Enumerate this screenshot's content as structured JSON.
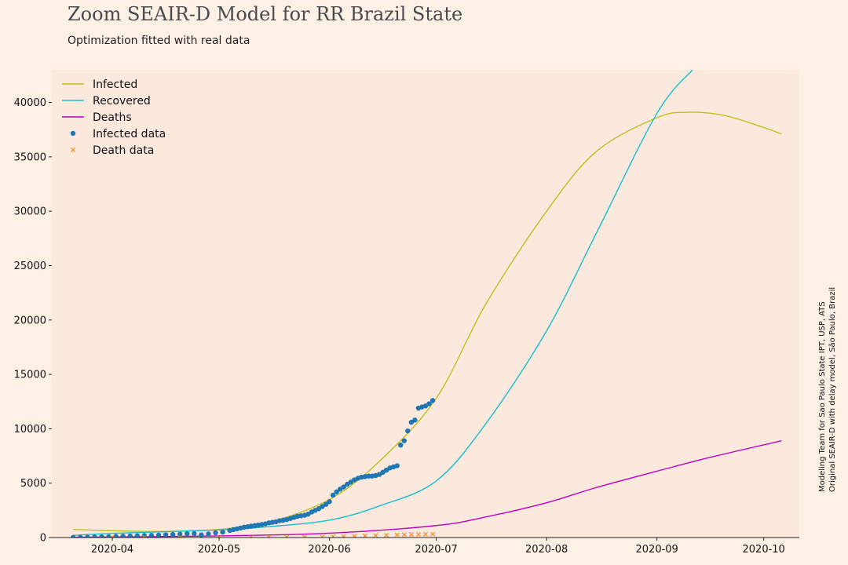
{
  "title": "Zoom SEAIR-D Model for RR Brazil State",
  "subtitle": "Optimization fitted with real data",
  "credits": [
    "Modeling Team for Sao Paulo State IPT, USP, ATS",
    "Original SEAIR-D with delay model, São Paulo, Brazil"
  ],
  "colors": {
    "background": "#fdf1e6",
    "plot_background": "#fbe9dd",
    "infected": "#c4bc1e",
    "recovered": "#17becf",
    "deaths": "#c000c0",
    "infected_data": "#1f77b4",
    "death_data": "#ff7f0e"
  },
  "chart_data": {
    "type": "line",
    "title": "Zoom SEAIR-D Model for RR Brazil State",
    "subtitle": "Optimization fitted with real data",
    "xlabel": "",
    "ylabel": "",
    "x_type": "date",
    "xlim": [
      "2020-03-15",
      "2020-10-11"
    ],
    "ylim": [
      0,
      43000
    ],
    "x_ticks": [
      "2020-04",
      "2020-05",
      "2020-06",
      "2020-07",
      "2020-08",
      "2020-09",
      "2020-10"
    ],
    "x_tick_dates": [
      "2020-04-01",
      "2020-05-01",
      "2020-06-01",
      "2020-07-01",
      "2020-08-01",
      "2020-09-01",
      "2020-10-01"
    ],
    "y_ticks": [
      0,
      5000,
      10000,
      15000,
      20000,
      25000,
      30000,
      35000,
      40000
    ],
    "grid": false,
    "legend_position": "top-left",
    "legend": [
      {
        "label": "Infected",
        "kind": "line",
        "color": "#c4bc1e"
      },
      {
        "label": "Recovered",
        "kind": "line",
        "color": "#17becf"
      },
      {
        "label": "Deaths",
        "kind": "line",
        "color": "#c000c0"
      },
      {
        "label": "Infected data",
        "kind": "dot",
        "color": "#1f77b4"
      },
      {
        "label": "Death data",
        "kind": "cross",
        "color": "#ff7f0e"
      }
    ],
    "series": [
      {
        "name": "Infected",
        "kind": "line",
        "color": "#c4bc1e",
        "x": [
          "2020-03-21",
          "2020-04-01",
          "2020-04-15",
          "2020-05-01",
          "2020-05-15",
          "2020-06-01",
          "2020-06-15",
          "2020-07-01",
          "2020-07-15",
          "2020-08-01",
          "2020-08-15",
          "2020-09-01",
          "2020-09-10",
          "2020-09-20",
          "2020-10-01",
          "2020-10-06"
        ],
        "y": [
          750,
          620,
          560,
          750,
          1400,
          3500,
          7000,
          12800,
          21500,
          30000,
          35500,
          38600,
          39100,
          38800,
          37700,
          37100
        ]
      },
      {
        "name": "Recovered",
        "kind": "line",
        "color": "#17becf",
        "x": [
          "2020-03-21",
          "2020-04-01",
          "2020-05-01",
          "2020-05-15",
          "2020-06-01",
          "2020-06-15",
          "2020-07-01",
          "2020-07-15",
          "2020-08-01",
          "2020-08-15",
          "2020-09-01",
          "2020-09-11"
        ],
        "y": [
          200,
          380,
          700,
          1000,
          1600,
          2900,
          5200,
          10500,
          19000,
          28000,
          39000,
          43000
        ]
      },
      {
        "name": "Deaths",
        "kind": "line",
        "color": "#c000c0",
        "x": [
          "2020-03-21",
          "2020-05-01",
          "2020-06-01",
          "2020-07-01",
          "2020-07-15",
          "2020-08-01",
          "2020-08-15",
          "2020-09-01",
          "2020-09-15",
          "2020-10-06"
        ],
        "y": [
          20,
          150,
          400,
          1100,
          1900,
          3200,
          4600,
          6100,
          7300,
          8900
        ]
      },
      {
        "name": "Infected data",
        "kind": "scatter",
        "marker": "dot",
        "color": "#1f77b4",
        "x": [
          "2020-03-21",
          "2020-03-23",
          "2020-03-25",
          "2020-03-27",
          "2020-03-29",
          "2020-03-31",
          "2020-04-02",
          "2020-04-04",
          "2020-04-06",
          "2020-04-08",
          "2020-04-10",
          "2020-04-12",
          "2020-04-14",
          "2020-04-16",
          "2020-04-18",
          "2020-04-20",
          "2020-04-22",
          "2020-04-24",
          "2020-04-26",
          "2020-04-28",
          "2020-04-30",
          "2020-05-02",
          "2020-05-04",
          "2020-05-05",
          "2020-05-06",
          "2020-05-07",
          "2020-05-08",
          "2020-05-09",
          "2020-05-10",
          "2020-05-11",
          "2020-05-12",
          "2020-05-13",
          "2020-05-14",
          "2020-05-15",
          "2020-05-16",
          "2020-05-17",
          "2020-05-18",
          "2020-05-19",
          "2020-05-20",
          "2020-05-21",
          "2020-05-22",
          "2020-05-23",
          "2020-05-24",
          "2020-05-25",
          "2020-05-26",
          "2020-05-27",
          "2020-05-28",
          "2020-05-29",
          "2020-05-30",
          "2020-05-31",
          "2020-06-01",
          "2020-06-02",
          "2020-06-03",
          "2020-06-04",
          "2020-06-05",
          "2020-06-06",
          "2020-06-07",
          "2020-06-08",
          "2020-06-09",
          "2020-06-10",
          "2020-06-11",
          "2020-06-12",
          "2020-06-13",
          "2020-06-14",
          "2020-06-15",
          "2020-06-16",
          "2020-06-17",
          "2020-06-18",
          "2020-06-19",
          "2020-06-20",
          "2020-06-21",
          "2020-06-22",
          "2020-06-23",
          "2020-06-24",
          "2020-06-25",
          "2020-06-26",
          "2020-06-27",
          "2020-06-28",
          "2020-06-29",
          "2020-06-30"
        ],
        "y": [
          10,
          20,
          30,
          50,
          60,
          80,
          100,
          120,
          140,
          160,
          180,
          200,
          220,
          250,
          280,
          310,
          350,
          370,
          250,
          330,
          430,
          500,
          650,
          730,
          800,
          870,
          950,
          1000,
          1050,
          1100,
          1150,
          1200,
          1260,
          1350,
          1400,
          1450,
          1550,
          1600,
          1650,
          1750,
          1850,
          1950,
          2000,
          2050,
          2150,
          2350,
          2500,
          2650,
          2850,
          3050,
          3300,
          3900,
          4200,
          4450,
          4650,
          4900,
          5100,
          5300,
          5450,
          5550,
          5600,
          5650,
          5650,
          5700,
          5800,
          6000,
          6200,
          6400,
          6500,
          6600,
          8500,
          8900,
          9800,
          10600,
          10800,
          11900,
          12000,
          12100,
          12300,
          12600
        ]
      },
      {
        "name": "Death data",
        "kind": "scatter",
        "marker": "cross",
        "color": "#ff7f0e",
        "x": [
          "2020-04-01",
          "2020-04-10",
          "2020-04-20",
          "2020-05-01",
          "2020-05-10",
          "2020-05-15",
          "2020-05-20",
          "2020-05-25",
          "2020-05-30",
          "2020-06-02",
          "2020-06-05",
          "2020-06-08",
          "2020-06-11",
          "2020-06-14",
          "2020-06-17",
          "2020-06-20",
          "2020-06-22",
          "2020-06-24",
          "2020-06-26",
          "2020-06-28",
          "2020-06-30"
        ],
        "y": [
          2,
          5,
          8,
          12,
          18,
          25,
          35,
          45,
          60,
          80,
          100,
          130,
          160,
          190,
          220,
          250,
          270,
          280,
          290,
          300,
          310
        ]
      }
    ]
  }
}
